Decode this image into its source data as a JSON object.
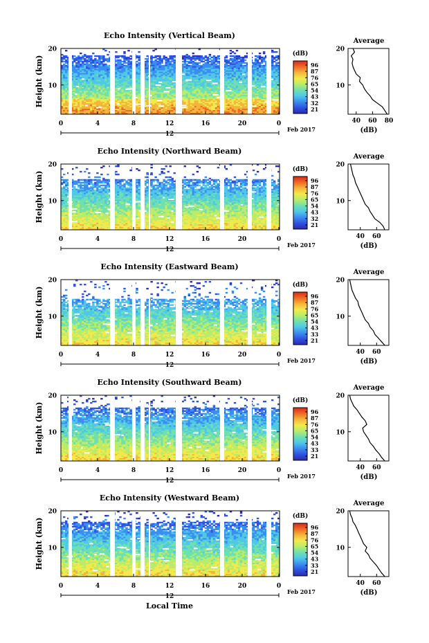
{
  "panels": [
    {
      "title": "Echo Intensity (Vertical Beam)",
      "cbar_ticks": [
        "96",
        "87",
        "76",
        "65",
        "54",
        "43",
        "32",
        "21"
      ]
    },
    {
      "title": "Echo Intensity (Northward Beam)",
      "cbar_ticks": [
        "96",
        "87",
        "76",
        "65",
        "54",
        "43",
        "32",
        "21"
      ]
    },
    {
      "title": "Echo Intensity (Eastward Beam)",
      "cbar_ticks": [
        "96",
        "87",
        "76",
        "65",
        "54",
        "43",
        "33",
        "21"
      ]
    },
    {
      "title": "Echo Intensity (Southward Beam)",
      "cbar_ticks": [
        "96",
        "87",
        "76",
        "65",
        "54",
        "43",
        "33",
        "21"
      ]
    },
    {
      "title": "Echo Intensity (Westward Beam)",
      "cbar_ticks": [
        "96",
        "87",
        "76",
        "65",
        "54",
        "43",
        "33",
        "21"
      ]
    }
  ],
  "common": {
    "ylabel": "Height (km)",
    "yticks": [
      "20",
      "10"
    ],
    "xticks": [
      "0",
      "4",
      "8",
      "12",
      "16",
      "20",
      "0"
    ],
    "date_label": "12",
    "month_label": "Feb 2017",
    "cbar_unit": "(dB)",
    "avg_title": "Average",
    "avg_xlabel": "(dB)",
    "avg_yticks": [
      "20",
      "10"
    ],
    "xlabel": "Local Time"
  },
  "colors": {
    "colormap": [
      "#2b2cb0",
      "#2f52e0",
      "#3a8ef0",
      "#4fc8e8",
      "#6fe0b0",
      "#b8ec6a",
      "#f3e94a",
      "#f5b53a",
      "#ef6a26",
      "#d72a1a"
    ]
  },
  "chart_data": [
    {
      "type": "heatmap",
      "title": "Echo Intensity (Vertical Beam)",
      "ylabel": "Height (km)",
      "ylim": [
        2,
        20
      ],
      "x_label": "12 Feb 2017",
      "colorbar": {
        "label": "(dB)",
        "ticks": [
          96,
          87,
          76,
          65,
          54,
          43,
          32,
          21
        ]
      },
      "average_profile": {
        "title": "Average",
        "xlabel": "(dB)",
        "xticks": [
          40,
          60,
          80
        ],
        "xlim": [
          30,
          80
        ],
        "height": [
          2,
          3,
          4,
          5,
          6,
          7,
          8,
          9,
          10,
          11,
          12,
          13,
          14,
          15,
          16,
          17,
          18,
          19,
          20
        ],
        "db": [
          78,
          75,
          72,
          66,
          60,
          57,
          53,
          50,
          48,
          44,
          45,
          40,
          38,
          36,
          35,
          36,
          34,
          38,
          36
        ]
      }
    },
    {
      "type": "heatmap",
      "title": "Echo Intensity (Northward Beam)",
      "ylabel": "Height (km)",
      "ylim": [
        2,
        20
      ],
      "x_label": "12 Feb 2017",
      "colorbar": {
        "label": "(dB)",
        "ticks": [
          96,
          87,
          76,
          65,
          54,
          43,
          32,
          21
        ]
      },
      "average_profile": {
        "title": "Average",
        "xlabel": "(dB)",
        "xticks": [
          40,
          60
        ],
        "xlim": [
          25,
          75
        ],
        "height": [
          2,
          3,
          4,
          5,
          6,
          7,
          8,
          9,
          10,
          11,
          12,
          13,
          14,
          15,
          16,
          17,
          18,
          19,
          20
        ],
        "db": [
          70,
          68,
          64,
          58,
          55,
          52,
          50,
          46,
          44,
          42,
          40,
          38,
          36,
          34,
          33,
          31,
          30,
          29,
          28
        ]
      }
    },
    {
      "type": "heatmap",
      "title": "Echo Intensity (Eastward Beam)",
      "ylabel": "Height (km)",
      "ylim": [
        2,
        20
      ],
      "x_label": "12 Feb 2017",
      "colorbar": {
        "label": "(dB)",
        "ticks": [
          96,
          87,
          76,
          65,
          54,
          43,
          33,
          21
        ]
      },
      "average_profile": {
        "title": "Average",
        "xlabel": "(dB)",
        "xticks": [
          40,
          60
        ],
        "xlim": [
          25,
          75
        ],
        "height": [
          2,
          3,
          4,
          5,
          6,
          7,
          8,
          9,
          10,
          11,
          12,
          13,
          14,
          15,
          16,
          17,
          18,
          19,
          20
        ],
        "db": [
          70,
          66,
          62,
          58,
          56,
          52,
          50,
          46,
          44,
          42,
          40,
          38,
          37,
          34,
          32,
          30,
          29,
          28,
          27
        ]
      }
    },
    {
      "type": "heatmap",
      "title": "Echo Intensity (Southward Beam)",
      "ylabel": "Height (km)",
      "ylim": [
        2,
        20
      ],
      "x_label": "12 Feb 2017",
      "colorbar": {
        "label": "(dB)",
        "ticks": [
          96,
          87,
          76,
          65,
          54,
          43,
          33,
          21
        ]
      },
      "average_profile": {
        "title": "Average",
        "xlabel": "(dB)",
        "xticks": [
          40,
          60
        ],
        "xlim": [
          25,
          75
        ],
        "height": [
          2,
          3,
          4,
          5,
          6,
          7,
          8,
          9,
          10,
          11,
          12,
          13,
          14,
          15,
          16,
          17,
          18,
          19,
          20
        ],
        "db": [
          70,
          66,
          63,
          59,
          56,
          52,
          50,
          47,
          44,
          43,
          48,
          46,
          42,
          39,
          36,
          32,
          30,
          28,
          27
        ]
      }
    },
    {
      "type": "heatmap",
      "title": "Echo Intensity (Westward Beam)",
      "ylabel": "Height (km)",
      "ylim": [
        2,
        20
      ],
      "x_label": "12 Feb 2017",
      "xlabel": "Local Time",
      "colorbar": {
        "label": "(dB)",
        "ticks": [
          96,
          87,
          76,
          65,
          54,
          43,
          33,
          21
        ]
      },
      "average_profile": {
        "title": "Average",
        "xlabel": "(dB)",
        "xticks": [
          40,
          60
        ],
        "xlim": [
          25,
          75
        ],
        "height": [
          2,
          3,
          4,
          5,
          6,
          7,
          8,
          9,
          10,
          11,
          12,
          13,
          14,
          15,
          16,
          17,
          18,
          19,
          20
        ],
        "db": [
          70,
          66,
          63,
          60,
          56,
          52,
          50,
          46,
          48,
          44,
          42,
          40,
          38,
          36,
          34,
          31,
          30,
          28,
          27
        ]
      }
    }
  ]
}
